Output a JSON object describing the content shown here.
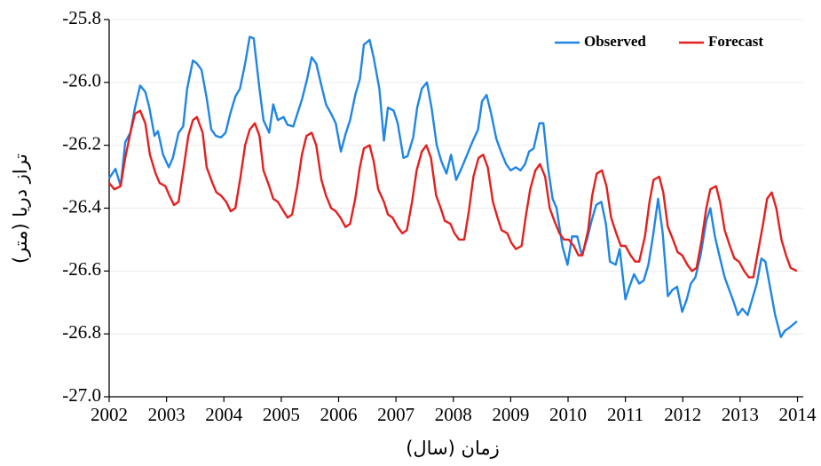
{
  "chart_data": {
    "type": "line",
    "x_label": "زمان (سال)",
    "y_label": "تراز دریا (متر)",
    "xlim": [
      2002,
      2014.1
    ],
    "xticks": [
      2002,
      2003,
      2004,
      2005,
      2006,
      2007,
      2008,
      2009,
      2010,
      2011,
      2012,
      2013,
      2014
    ],
    "ylim": [
      -27.0,
      -25.8
    ],
    "yticks": [
      {
        "value": -27.0,
        "label": "-27.0"
      },
      -26.8,
      -26.6,
      -26.4,
      -26.2,
      {
        "value": -26.0,
        "label": "-26.0"
      },
      -25.8
    ],
    "grid": true,
    "legend": "upper right",
    "series": [
      {
        "name": "Observed",
        "color": "#1f86e6",
        "x": [
          2002.0,
          2002.11,
          2002.2,
          2002.28,
          2002.37,
          2002.45,
          2002.54,
          2002.63,
          2002.7,
          2002.79,
          2002.85,
          2002.94,
          2003.04,
          2003.11,
          2003.21,
          2003.29,
          2003.36,
          2003.46,
          2003.53,
          2003.61,
          2003.7,
          2003.78,
          2003.86,
          2003.95,
          2004.03,
          2004.11,
          2004.2,
          2004.28,
          2004.37,
          2004.45,
          2004.52,
          2004.62,
          2004.69,
          2004.79,
          2004.86,
          2004.94,
          2005.04,
          2005.11,
          2005.21,
          2005.28,
          2005.36,
          2005.45,
          2005.53,
          2005.61,
          2005.7,
          2005.78,
          2005.87,
          2005.95,
          2006.04,
          2006.12,
          2006.2,
          2006.29,
          2006.37,
          2006.44,
          2006.54,
          2006.61,
          2006.71,
          2006.79,
          2006.86,
          2006.96,
          2007.03,
          2007.13,
          2007.2,
          2007.3,
          2007.37,
          2007.45,
          2007.54,
          2007.62,
          2007.71,
          2007.79,
          2007.88,
          2007.96,
          2008.05,
          2008.15,
          2008.24,
          2008.33,
          2008.43,
          2008.5,
          2008.58,
          2008.66,
          2008.75,
          2008.83,
          2008.92,
          2009.0,
          2009.09,
          2009.17,
          2009.25,
          2009.32,
          2009.4,
          2009.5,
          2009.57,
          2009.65,
          2009.73,
          2009.8,
          2009.9,
          2009.99,
          2010.07,
          2010.16,
          2010.24,
          2010.33,
          2010.41,
          2010.49,
          2010.58,
          2010.66,
          2010.73,
          2010.83,
          2010.9,
          2011.0,
          2011.07,
          2011.15,
          2011.24,
          2011.32,
          2011.4,
          2011.48,
          2011.57,
          2011.65,
          2011.74,
          2011.82,
          2011.9,
          2011.99,
          2012.07,
          2012.14,
          2012.22,
          2012.31,
          2012.41,
          2012.48,
          2012.56,
          2012.65,
          2012.73,
          2012.81,
          2012.89,
          2012.96,
          2013.04,
          2013.13,
          2013.21,
          2013.29,
          2013.37,
          2013.44,
          2013.54,
          2013.61,
          2013.71,
          2013.78,
          2013.86,
          2013.99
        ],
        "values": [
          -26.305,
          -26.275,
          -26.33,
          -26.19,
          -26.16,
          -26.08,
          -26.01,
          -26.03,
          -26.08,
          -26.17,
          -26.155,
          -26.23,
          -26.27,
          -26.24,
          -26.16,
          -26.14,
          -26.02,
          -25.93,
          -25.94,
          -25.96,
          -26.05,
          -26.15,
          -26.17,
          -26.175,
          -26.16,
          -26.1,
          -26.045,
          -26.02,
          -25.94,
          -25.855,
          -25.86,
          -26.02,
          -26.12,
          -26.16,
          -26.07,
          -26.12,
          -26.11,
          -26.135,
          -26.14,
          -26.1,
          -26.055,
          -25.99,
          -25.92,
          -25.94,
          -26.01,
          -26.07,
          -26.1,
          -26.13,
          -26.22,
          -26.165,
          -26.12,
          -26.04,
          -25.99,
          -25.88,
          -25.865,
          -25.92,
          -26.02,
          -26.185,
          -26.08,
          -26.09,
          -26.13,
          -26.24,
          -26.235,
          -26.175,
          -26.08,
          -26.02,
          -26.0,
          -26.08,
          -26.2,
          -26.25,
          -26.29,
          -26.23,
          -26.31,
          -26.27,
          -26.23,
          -26.19,
          -26.15,
          -26.06,
          -26.04,
          -26.1,
          -26.18,
          -26.22,
          -26.26,
          -26.28,
          -26.27,
          -26.28,
          -26.26,
          -26.22,
          -26.21,
          -26.13,
          -26.13,
          -26.27,
          -26.37,
          -26.4,
          -26.52,
          -26.58,
          -26.49,
          -26.49,
          -26.55,
          -26.5,
          -26.44,
          -26.39,
          -26.38,
          -26.45,
          -26.57,
          -26.58,
          -26.53,
          -26.69,
          -26.65,
          -26.61,
          -26.64,
          -26.63,
          -26.58,
          -26.49,
          -26.37,
          -26.48,
          -26.68,
          -26.66,
          -26.65,
          -26.73,
          -26.69,
          -26.64,
          -26.62,
          -26.55,
          -26.44,
          -26.4,
          -26.49,
          -26.56,
          -26.62,
          -26.66,
          -26.7,
          -26.74,
          -26.72,
          -26.74,
          -26.69,
          -26.64,
          -26.56,
          -26.57,
          -26.67,
          -26.74,
          -26.81,
          -26.79,
          -26.78,
          -26.76
        ]
      },
      {
        "name": "Forecast",
        "color": "#e3201e",
        "x": [
          2002.0,
          2002.09,
          2002.2,
          2002.28,
          2002.37,
          2002.45,
          2002.54,
          2002.63,
          2002.71,
          2002.81,
          2002.88,
          2002.98,
          2003.05,
          2003.13,
          2003.21,
          2003.3,
          2003.38,
          2003.46,
          2003.53,
          2003.63,
          2003.7,
          2003.8,
          2003.87,
          2003.95,
          2004.04,
          2004.12,
          2004.2,
          2004.29,
          2004.37,
          2004.45,
          2004.54,
          2004.62,
          2004.69,
          2004.79,
          2004.86,
          2004.94,
          2005.04,
          2005.11,
          2005.19,
          2005.28,
          2005.36,
          2005.44,
          2005.53,
          2005.61,
          2005.7,
          2005.78,
          2005.87,
          2005.95,
          2006.03,
          2006.12,
          2006.2,
          2006.29,
          2006.37,
          2006.44,
          2006.54,
          2006.61,
          2006.69,
          2006.79,
          2006.86,
          2006.94,
          2007.03,
          2007.11,
          2007.19,
          2007.28,
          2007.36,
          2007.45,
          2007.53,
          2007.61,
          2007.7,
          2007.78,
          2007.85,
          2007.95,
          2008.02,
          2008.1,
          2008.19,
          2008.27,
          2008.35,
          2008.44,
          2008.52,
          2008.6,
          2008.69,
          2008.77,
          2008.84,
          2008.94,
          2009.01,
          2009.09,
          2009.19,
          2009.26,
          2009.34,
          2009.43,
          2009.51,
          2009.6,
          2009.68,
          2009.76,
          2009.85,
          2009.93,
          2010.01,
          2010.1,
          2010.18,
          2010.25,
          2010.35,
          2010.42,
          2010.5,
          2010.59,
          2010.67,
          2010.75,
          2010.84,
          2010.92,
          2011.0,
          2011.09,
          2011.17,
          2011.24,
          2011.34,
          2011.42,
          2011.49,
          2011.59,
          2011.66,
          2011.74,
          2011.83,
          2011.91,
          2011.99,
          2012.08,
          2012.16,
          2012.24,
          2012.33,
          2012.41,
          2012.48,
          2012.58,
          2012.65,
          2012.73,
          2012.82,
          2012.9,
          2012.98,
          2013.07,
          2013.15,
          2013.23,
          2013.3,
          2013.4,
          2013.47,
          2013.55,
          2013.63,
          2013.72,
          2013.8,
          2013.88,
          2013.99
        ],
        "values": [
          -26.32,
          -26.34,
          -26.33,
          -26.24,
          -26.16,
          -26.1,
          -26.09,
          -26.13,
          -26.23,
          -26.29,
          -26.32,
          -26.33,
          -26.36,
          -26.39,
          -26.38,
          -26.27,
          -26.17,
          -26.12,
          -26.11,
          -26.16,
          -26.27,
          -26.32,
          -26.35,
          -26.36,
          -26.38,
          -26.41,
          -26.4,
          -26.3,
          -26.2,
          -26.15,
          -26.13,
          -26.17,
          -26.28,
          -26.33,
          -26.37,
          -26.38,
          -26.41,
          -26.43,
          -26.42,
          -26.33,
          -26.23,
          -26.17,
          -26.16,
          -26.2,
          -26.31,
          -26.36,
          -26.4,
          -26.41,
          -26.43,
          -26.46,
          -26.45,
          -26.37,
          -26.27,
          -26.21,
          -26.2,
          -26.25,
          -26.34,
          -26.38,
          -26.42,
          -26.43,
          -26.46,
          -26.48,
          -26.47,
          -26.38,
          -26.28,
          -26.22,
          -26.2,
          -26.24,
          -26.36,
          -26.4,
          -26.44,
          -26.45,
          -26.48,
          -26.5,
          -26.5,
          -26.41,
          -26.3,
          -26.24,
          -26.23,
          -26.27,
          -26.38,
          -26.43,
          -26.47,
          -26.48,
          -26.51,
          -26.53,
          -26.52,
          -26.43,
          -26.34,
          -26.28,
          -26.26,
          -26.3,
          -26.4,
          -26.44,
          -26.48,
          -26.5,
          -26.5,
          -26.52,
          -26.55,
          -26.55,
          -26.47,
          -26.36,
          -26.29,
          -26.28,
          -26.33,
          -26.43,
          -26.48,
          -26.52,
          -26.52,
          -26.55,
          -26.57,
          -26.57,
          -26.49,
          -26.38,
          -26.31,
          -26.3,
          -26.35,
          -26.46,
          -26.5,
          -26.54,
          -26.55,
          -26.58,
          -26.6,
          -26.59,
          -26.5,
          -26.4,
          -26.34,
          -26.33,
          -26.38,
          -26.47,
          -26.52,
          -26.56,
          -26.57,
          -26.6,
          -26.62,
          -26.62,
          -26.55,
          -26.45,
          -26.37,
          -26.35,
          -26.4,
          -26.5,
          -26.55,
          -26.59,
          -26.6
        ]
      }
    ]
  }
}
